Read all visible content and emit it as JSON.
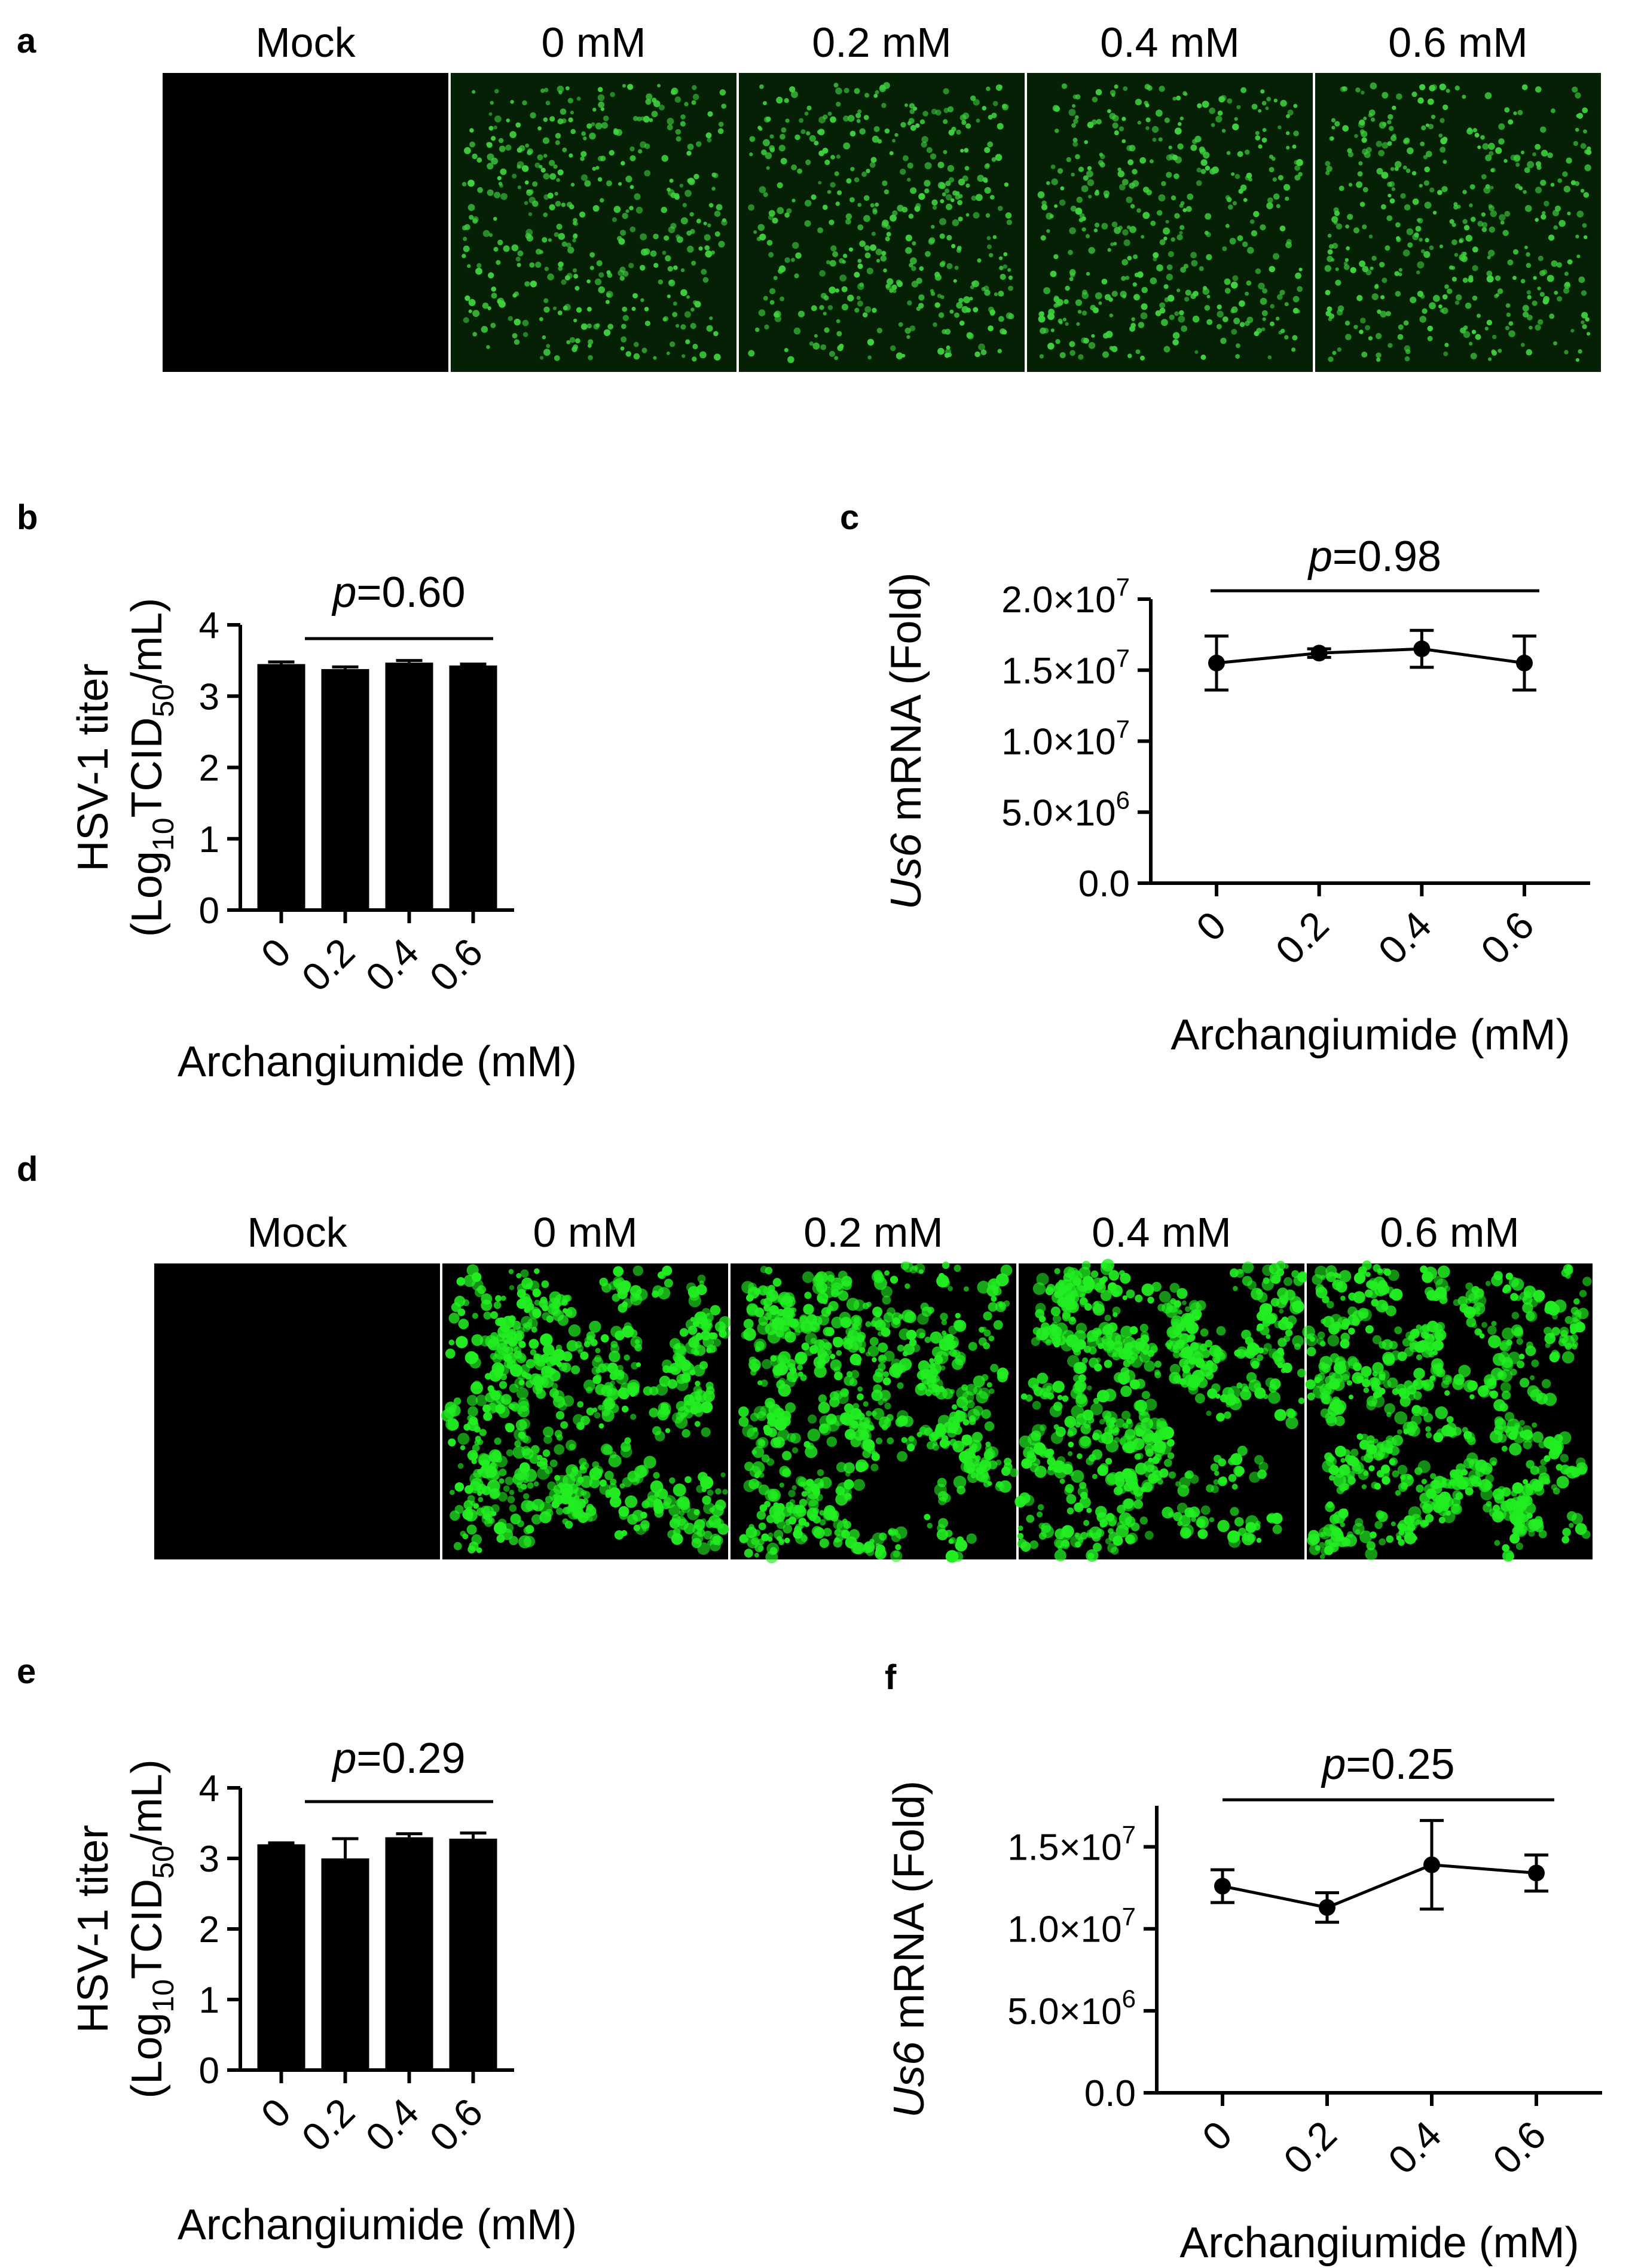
{
  "panels": {
    "a": {
      "letter": "a",
      "images": [
        {
          "label": "Mock",
          "fluorescence": "none",
          "color": "#000000"
        },
        {
          "label": "0 mM",
          "fluorescence": "dense small green cells",
          "color": "#3fd23f"
        },
        {
          "label": "0.2 mM",
          "fluorescence": "dense small green cells",
          "color": "#3fd23f"
        },
        {
          "label": "0.4 mM",
          "fluorescence": "dense small green cells",
          "color": "#3fd23f"
        },
        {
          "label": "0.6 mM",
          "fluorescence": "dense small green cells",
          "color": "#3fd23f"
        }
      ]
    },
    "d": {
      "letter": "d",
      "images": [
        {
          "label": "Mock",
          "fluorescence": "none",
          "color": "#000000"
        },
        {
          "label": "0 mM",
          "fluorescence": "bright green cell clusters",
          "color": "#22ee22"
        },
        {
          "label": "0.2 mM",
          "fluorescence": "bright green cell clusters",
          "color": "#22ee22"
        },
        {
          "label": "0.4 mM",
          "fluorescence": "bright green cell clusters",
          "color": "#22ee22"
        },
        {
          "label": "0.6 mM",
          "fluorescence": "bright green cell clusters",
          "color": "#22ee22"
        }
      ]
    }
  },
  "chart_data": [
    {
      "id": "b",
      "letter": "b",
      "type": "bar",
      "categories": [
        "0",
        "0.2",
        "0.4",
        "0.6"
      ],
      "values": [
        3.45,
        3.38,
        3.47,
        3.43
      ],
      "errors": [
        0.03,
        0.03,
        0.03,
        0.02
      ],
      "ylim": [
        0,
        4
      ],
      "yticks": [
        "0",
        "1",
        "2",
        "3",
        "4"
      ],
      "ytick_values": [
        0,
        1,
        2,
        3,
        4
      ],
      "ylabel_line1": "HSV-1 titer",
      "ylabel_line2": {
        "pre": "(Log",
        "sub1": "10",
        "mid": "TCID",
        "sub2": "50",
        "post": "/mL)"
      },
      "xlabel": "Archangiumide (mM)",
      "pvalue": {
        "p": "p",
        "text": "=0.60"
      },
      "bar_color": "#000000"
    },
    {
      "id": "c",
      "letter": "c",
      "type": "line",
      "x": [
        "0",
        "0.2",
        "0.4",
        "0.6"
      ],
      "values": [
        15500000,
        16200000,
        16500000,
        15500000
      ],
      "errors": [
        1900000,
        300000,
        1300000,
        1900000
      ],
      "ylim": [
        0,
        20000000
      ],
      "ytick_values": [
        0,
        5000000,
        10000000,
        15000000,
        20000000
      ],
      "yticks": [
        {
          "base": "0.0",
          "exp": ""
        },
        {
          "base": "5.0×10",
          "exp": "6"
        },
        {
          "base": "1.0×10",
          "exp": "7"
        },
        {
          "base": "1.5×10",
          "exp": "7"
        },
        {
          "base": "2.0×10",
          "exp": "7"
        }
      ],
      "ylabel": {
        "italic": "Us6",
        "rest": " mRNA (Fold)"
      },
      "xlabel": "Archangiumide (mM)",
      "pvalue": {
        "p": "p",
        "text": "=0.98"
      },
      "line_color": "#000000"
    },
    {
      "id": "e",
      "letter": "e",
      "type": "bar",
      "categories": [
        "0",
        "0.2",
        "0.4",
        "0.6"
      ],
      "values": [
        3.2,
        3.0,
        3.3,
        3.28
      ],
      "errors": [
        0.02,
        0.28,
        0.05,
        0.08
      ],
      "ylim": [
        0,
        4
      ],
      "yticks": [
        "0",
        "1",
        "2",
        "3",
        "4"
      ],
      "ytick_values": [
        0,
        1,
        2,
        3,
        4
      ],
      "ylabel_line1": "HSV-1 titer",
      "ylabel_line2": {
        "pre": "(Log",
        "sub1": "10",
        "mid": "TCID",
        "sub2": "50",
        "post": "/mL)"
      },
      "xlabel": "Archangiumide (mM)",
      "pvalue": {
        "p": "p",
        "text": "=0.29"
      },
      "bar_color": "#000000"
    },
    {
      "id": "f",
      "letter": "f",
      "type": "line",
      "x": [
        "0",
        "0.2",
        "0.4",
        "0.6"
      ],
      "values": [
        12600000,
        11300000,
        13900000,
        13400000
      ],
      "errors": [
        1000000,
        900000,
        2700000,
        1100000
      ],
      "ylim": [
        0,
        17500000
      ],
      "ytick_values": [
        0,
        5000000,
        10000000,
        15000000
      ],
      "yticks": [
        {
          "base": "0.0",
          "exp": ""
        },
        {
          "base": "5.0×10",
          "exp": "6"
        },
        {
          "base": "1.0×10",
          "exp": "7"
        },
        {
          "base": "1.5×10",
          "exp": "7"
        }
      ],
      "ylabel": {
        "italic": "Us6",
        "rest": " mRNA (Fold)"
      },
      "xlabel": "Archangiumide (mM)",
      "pvalue": {
        "p": "p",
        "text": "=0.25"
      },
      "line_color": "#000000"
    }
  ]
}
